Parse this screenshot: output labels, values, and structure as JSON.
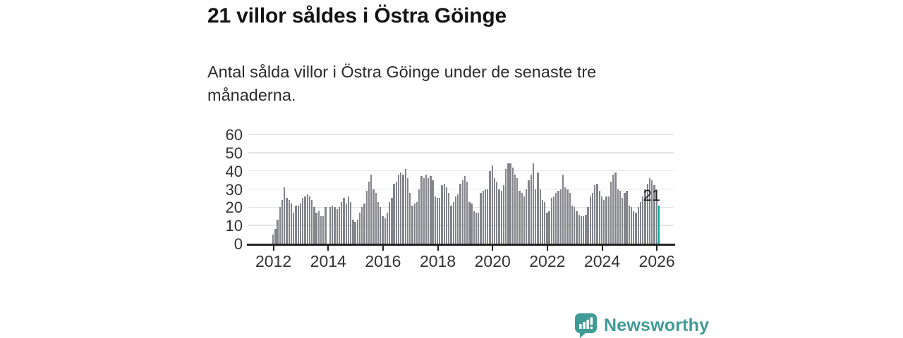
{
  "page": {
    "title": "21 villor såldes i Östra Göinge",
    "subtitle": "Antal sålda villor i Östra Göinge under de senaste tre månaderna."
  },
  "chart_data": {
    "type": "bar",
    "title": "21 villor såldes i Östra Göinge",
    "subtitle": "Antal sålda villor i Östra Göinge under de senaste tre månaderna.",
    "x_start": "2012-01",
    "x_interval": "month",
    "x_end": "2026-02",
    "ylim": [
      0,
      60
    ],
    "y_ticks": [
      0,
      10,
      20,
      30,
      40,
      50,
      60
    ],
    "grid": true,
    "x_ticks": [
      {
        "label": "2012",
        "index": 0
      },
      {
        "label": "2014",
        "index": 24
      },
      {
        "label": "2016",
        "index": 48
      },
      {
        "label": "2018",
        "index": 72
      },
      {
        "label": "2020",
        "index": 96
      },
      {
        "label": "2022",
        "index": 120
      },
      {
        "label": "2024",
        "index": 144
      },
      {
        "label": "2026",
        "index": 168
      }
    ],
    "values": [
      5,
      8,
      13,
      20,
      24,
      31,
      25,
      24,
      22,
      17,
      21,
      21,
      22,
      25,
      26,
      27,
      26,
      24,
      20,
      17,
      18,
      15,
      15,
      20,
      0,
      20,
      21,
      20,
      19,
      20,
      23,
      25,
      22,
      26,
      23,
      13,
      12,
      13,
      17,
      20,
      22,
      29,
      34,
      38,
      30,
      28,
      23,
      20,
      15,
      14,
      17,
      23,
      25,
      33,
      34,
      38,
      39,
      38,
      41,
      36,
      28,
      21,
      22,
      23,
      30,
      37,
      36,
      38,
      36,
      37,
      35,
      26,
      25,
      25,
      32,
      33,
      31,
      28,
      21,
      23,
      26,
      27,
      33,
      35,
      37,
      34,
      23,
      22,
      18,
      17,
      17,
      28,
      29,
      30,
      30,
      40,
      43,
      36,
      34,
      30,
      29,
      32,
      41,
      44,
      44,
      42,
      38,
      36,
      29,
      28,
      26,
      30,
      35,
      38,
      44,
      30,
      39,
      30,
      24,
      23,
      17,
      18,
      25,
      26,
      28,
      29,
      30,
      38,
      31,
      30,
      28,
      21,
      20,
      18,
      16,
      15,
      15,
      16,
      20,
      26,
      28,
      32,
      33,
      29,
      26,
      24,
      26,
      26,
      34,
      38,
      39,
      30,
      29,
      25,
      28,
      29,
      21,
      20,
      18,
      17,
      20,
      23,
      26,
      30,
      33,
      36,
      35,
      32,
      24,
      21
    ],
    "bar_color": "#84848b",
    "highlight": {
      "index": 169,
      "value": 21,
      "label": "21",
      "color": "#0aa69e"
    },
    "axis_color": "#232323",
    "grid_color": "#e4e4e4",
    "label_color": "#333333"
  },
  "branding": {
    "logo_text": "Newsworthy",
    "logo_color": "#3e9c95",
    "logo_icon": "bar-chart-speech-bubble-icon"
  }
}
